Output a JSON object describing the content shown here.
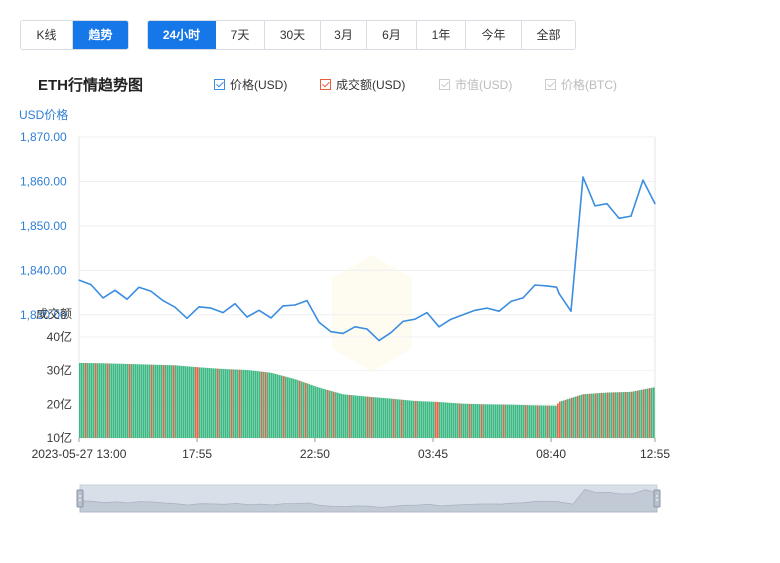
{
  "range_tabs_left": [
    {
      "label": "K线",
      "active": false
    },
    {
      "label": "趋势",
      "active": true
    }
  ],
  "range_tabs_right": [
    {
      "label": "24小时",
      "active": true
    },
    {
      "label": "7天",
      "active": false
    },
    {
      "label": "30天",
      "active": false
    },
    {
      "label": "3月",
      "active": false
    },
    {
      "label": "6月",
      "active": false
    },
    {
      "label": "1年",
      "active": false
    },
    {
      "label": "今年",
      "active": false
    },
    {
      "label": "全部",
      "active": false
    }
  ],
  "legend": [
    {
      "label": "价格(USD)",
      "checked": true,
      "enabled": true,
      "color": "#3b8de0"
    },
    {
      "label": "成交额(USD)",
      "checked": true,
      "enabled": true,
      "color": "#e8603c"
    },
    {
      "label": "市值(USD)",
      "checked": true,
      "enabled": false,
      "color": "#cccccc"
    },
    {
      "label": "价格(BTC)",
      "checked": true,
      "enabled": false,
      "color": "#cccccc"
    }
  ],
  "colors": {
    "accent": "#1677e8",
    "price_line": "#3b8de0",
    "volume_up": "#3dba84",
    "volume_down": "#ee6147"
  },
  "chart_data": {
    "type": "line",
    "title": "ETH行情趋势图",
    "price_axis": {
      "label": "USD价格",
      "ylim": [
        1825,
        1870
      ],
      "ticks": [
        "1,870.00",
        "1,860.00",
        "1,850.00",
        "1,840.00",
        "1,830.00"
      ]
    },
    "volume_axis": {
      "label": "成交额",
      "ylim": [
        10,
        40
      ],
      "ticks": [
        "40亿",
        "30亿",
        "20亿",
        "10亿"
      ]
    },
    "x_ticks": [
      "2023-05-27 13:00",
      "17:55",
      "22:50",
      "03:45",
      "08:40",
      "12:55"
    ],
    "grid": true,
    "series": [
      {
        "name": "价格(USD)",
        "x": [
          0,
          0.5,
          1,
          1.5,
          2,
          2.5,
          3,
          3.5,
          4,
          4.5,
          5,
          5.5,
          6,
          6.5,
          7,
          7.5,
          8,
          8.5,
          9,
          9.5,
          10,
          10.5,
          11,
          11.5,
          12,
          12.5,
          13,
          13.5,
          14,
          14.5,
          15,
          15.5,
          16,
          16.5,
          17,
          17.5,
          18,
          18.5,
          19,
          19.5,
          19.9,
          20,
          20.5,
          21,
          21.5,
          22,
          22.5,
          23,
          23.5,
          24
        ],
        "values": [
          1837.8,
          1836.8,
          1833.8,
          1835.5,
          1833.5,
          1836.2,
          1835.3,
          1833.2,
          1831.7,
          1829.2,
          1831.8,
          1831.5,
          1830.5,
          1832.5,
          1829.5,
          1831.0,
          1829.3,
          1832.0,
          1832.2,
          1833.2,
          1828.3,
          1826.2,
          1825.8,
          1827.3,
          1826.8,
          1824.2,
          1826.0,
          1828.5,
          1829.0,
          1830.5,
          1827.3,
          1829.0,
          1830.0,
          1831.0,
          1831.5,
          1830.8,
          1833.0,
          1833.8,
          1836.7,
          1836.5,
          1836.2,
          1834.8,
          1830.8,
          1861.0,
          1854.5,
          1855.0,
          1851.7,
          1852.2,
          1860.3,
          1855.0
        ]
      },
      {
        "name": "成交额(USD)",
        "x": [
          0,
          1,
          2,
          3,
          4,
          5,
          6,
          7,
          8,
          9,
          10,
          11,
          12,
          13,
          14,
          15,
          16,
          17,
          18,
          19,
          19.9,
          20,
          21,
          22,
          23,
          24
        ],
        "values": [
          32.3,
          32.2,
          32.0,
          31.8,
          31.6,
          31.0,
          30.5,
          30.2,
          29.4,
          27.5,
          25.0,
          23.0,
          22.3,
          21.7,
          21.0,
          20.7,
          20.2,
          20.0,
          19.9,
          19.7,
          19.6,
          20.7,
          23.0,
          23.5,
          23.7,
          25.1
        ]
      }
    ],
    "slider": {
      "start": 0,
      "end": 1
    }
  }
}
